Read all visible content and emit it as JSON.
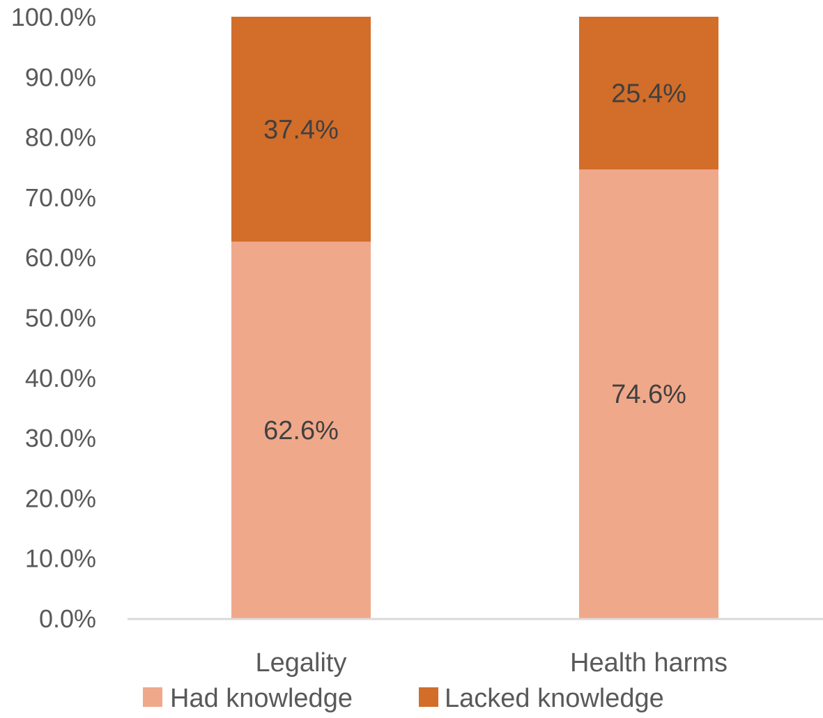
{
  "chart_data": {
    "type": "bar",
    "stacked": true,
    "categories": [
      "Legality",
      "Health harms"
    ],
    "series": [
      {
        "name": "Had knowledge",
        "values": [
          62.6,
          74.6
        ],
        "labels": [
          "62.6%",
          "74.6%"
        ],
        "color": "#F0A88A"
      },
      {
        "name": "Lacked knowledge",
        "values": [
          37.4,
          25.4
        ],
        "labels": [
          "37.4%",
          "25.4%"
        ],
        "color": "#D26D2A"
      }
    ],
    "ylim": [
      0,
      100
    ],
    "yticks": [
      "0.0%",
      "10.0%",
      "20.0%",
      "30.0%",
      "40.0%",
      "50.0%",
      "60.0%",
      "70.0%",
      "80.0%",
      "90.0%",
      "100.0%"
    ],
    "title": "",
    "xlabel": "",
    "ylabel": "",
    "grid": false,
    "legend_position": "bottom"
  }
}
